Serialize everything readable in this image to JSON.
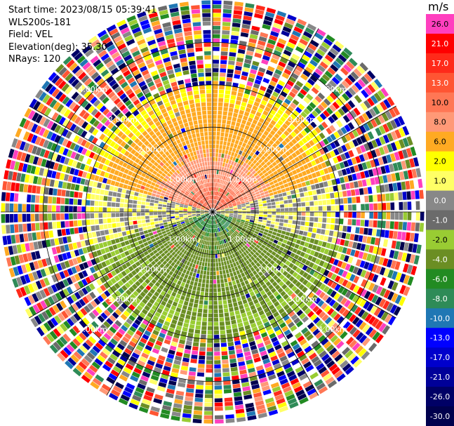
{
  "info": {
    "start_time": "Start time: 2023/08/15 05:39:41",
    "instrument": "WLS200s-181",
    "field": "Field: VEL",
    "elevation": "Elevation(deg): 35.30",
    "nrays": "NRays: 120"
  },
  "colorbar": {
    "unit": "m/s",
    "levels": [
      "26.0",
      "21.0",
      "17.0",
      "13.0",
      "10.0",
      "8.0",
      "6.0",
      "2.0",
      "1.0",
      "0.0",
      "-1.0",
      "-2.0",
      "-4.0",
      "-6.0",
      "-8.0",
      "-10.0",
      "-13.0",
      "-17.0",
      "-21.0",
      "-26.0",
      "-30.0"
    ],
    "colors": [
      "#ff3fbf",
      "#ff0000",
      "#ff2a1a",
      "#ff5533",
      "#ff7755",
      "#ff9977",
      "#ffaa22",
      "#ffff00",
      "#ffff66",
      "#888888",
      "#6b6b6b",
      "#99cc33",
      "#6b8e23",
      "#228b22",
      "#2e8b57",
      "#1f77b4",
      "#0000ff",
      "#0000cc",
      "#000099",
      "#000066",
      "#00004d"
    ]
  },
  "chart_data": {
    "type": "ppi-radar",
    "field": "VEL",
    "units": "m/s",
    "range_rings_km": [
      1.0,
      2.0,
      3.0,
      4.0
    ],
    "ring_labels": [
      "1.00km",
      "2.00km",
      "3.00km",
      "4.00km"
    ],
    "spoke_angles_deg": [
      0,
      30,
      60,
      90,
      120,
      150,
      180,
      210,
      240,
      270,
      300,
      330
    ],
    "nrays": 120,
    "max_range_km": 5.0,
    "pattern": {
      "north_center_velocity": 10.0,
      "north_edge_velocity": 2.0,
      "south_center_velocity": -6.0,
      "south_edge_velocity": -4.0,
      "noise_range_km": 3.2
    }
  }
}
